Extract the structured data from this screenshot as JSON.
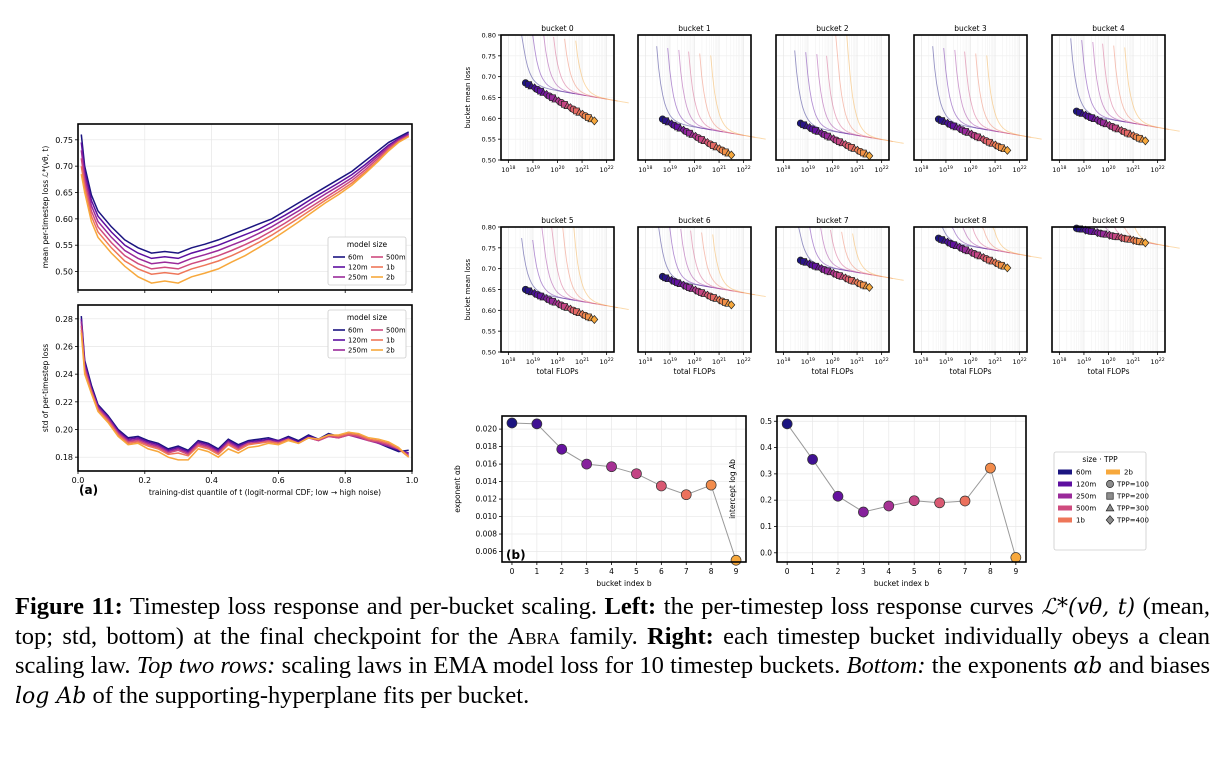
{
  "caption": {
    "label": "Figure 11:",
    "title": "Timestep loss response and per-bucket scaling.",
    "left_label": "Left:",
    "left_text_1": "the per-timestep loss response curves",
    "left_math": "ℒ*(vθ, t)",
    "left_text_2": "(mean, top; std, bottom) at the final checkpoint for the",
    "family": "Abra",
    "left_text_3": "family.",
    "right_label": "Right:",
    "right_text": "each timestep bucket individually obeys a clean scaling law.",
    "rows_label": "Top two rows:",
    "rows_text": "scaling laws in EMA model loss for 10 timestep buckets.",
    "bottom_label": "Bottom:",
    "bottom_text_1": "the exponents",
    "bottom_math_1": "αb",
    "bottom_text_2": "and biases",
    "bottom_math_2": "log Ab",
    "bottom_text_3": "of the supporting-hyperplane fits per bucket."
  },
  "palette": {
    "60m": "#1b1480",
    "120m": "#5e0fa0",
    "250m": "#9a2a9a",
    "500m": "#cf4b7e",
    "1b": "#ee7659",
    "2b": "#f7a83c"
  },
  "chart_data": [
    {
      "id": "left-top",
      "type": "line",
      "ylabel": "mean per-timestep loss  ℒ*(vθ, t)",
      "xlim": [
        0,
        1
      ],
      "ylim": [
        0.465,
        0.78
      ],
      "yticks": [
        0.5,
        0.55,
        0.6,
        0.65,
        0.7,
        0.75
      ],
      "xticks": [
        0.0,
        0.2,
        0.4,
        0.6,
        0.8,
        1.0
      ],
      "grid": true,
      "legend": {
        "title": "model size",
        "placement": "lower-right"
      },
      "x": [
        0.01,
        0.02,
        0.04,
        0.06,
        0.1,
        0.14,
        0.18,
        0.22,
        0.26,
        0.3,
        0.34,
        0.38,
        0.42,
        0.46,
        0.5,
        0.54,
        0.58,
        0.62,
        0.66,
        0.7,
        0.74,
        0.78,
        0.82,
        0.86,
        0.9,
        0.93,
        0.96,
        0.99
      ],
      "series": [
        {
          "name": "60m",
          "values": [
            0.76,
            0.7,
            0.645,
            0.615,
            0.585,
            0.56,
            0.545,
            0.535,
            0.538,
            0.535,
            0.545,
            0.552,
            0.56,
            0.57,
            0.58,
            0.59,
            0.6,
            0.615,
            0.63,
            0.645,
            0.66,
            0.675,
            0.69,
            0.71,
            0.73,
            0.745,
            0.755,
            0.765
          ]
        },
        {
          "name": "120m",
          "values": [
            0.745,
            0.69,
            0.635,
            0.605,
            0.575,
            0.55,
            0.535,
            0.525,
            0.528,
            0.525,
            0.535,
            0.542,
            0.55,
            0.56,
            0.57,
            0.58,
            0.593,
            0.607,
            0.622,
            0.638,
            0.653,
            0.668,
            0.684,
            0.703,
            0.724,
            0.74,
            0.752,
            0.762
          ]
        },
        {
          "name": "250m",
          "values": [
            0.73,
            0.68,
            0.625,
            0.595,
            0.565,
            0.54,
            0.525,
            0.515,
            0.518,
            0.515,
            0.525,
            0.532,
            0.54,
            0.55,
            0.56,
            0.572,
            0.585,
            0.6,
            0.615,
            0.631,
            0.647,
            0.662,
            0.678,
            0.698,
            0.72,
            0.737,
            0.75,
            0.76
          ]
        },
        {
          "name": "500m",
          "values": [
            0.715,
            0.67,
            0.615,
            0.585,
            0.555,
            0.53,
            0.515,
            0.505,
            0.508,
            0.505,
            0.515,
            0.522,
            0.53,
            0.54,
            0.551,
            0.563,
            0.577,
            0.592,
            0.608,
            0.624,
            0.64,
            0.656,
            0.673,
            0.693,
            0.716,
            0.734,
            0.748,
            0.758
          ]
        },
        {
          "name": "1b",
          "values": [
            0.7,
            0.66,
            0.605,
            0.575,
            0.545,
            0.52,
            0.505,
            0.495,
            0.498,
            0.495,
            0.505,
            0.512,
            0.52,
            0.53,
            0.542,
            0.555,
            0.569,
            0.585,
            0.601,
            0.618,
            0.635,
            0.651,
            0.668,
            0.689,
            0.712,
            0.731,
            0.746,
            0.757
          ]
        },
        {
          "name": "2b",
          "values": [
            0.685,
            0.65,
            0.595,
            0.565,
            0.535,
            0.51,
            0.49,
            0.478,
            0.482,
            0.478,
            0.49,
            0.497,
            0.505,
            0.518,
            0.53,
            0.545,
            0.56,
            0.577,
            0.594,
            0.612,
            0.63,
            0.646,
            0.664,
            0.686,
            0.71,
            0.729,
            0.745,
            0.756
          ]
        }
      ]
    },
    {
      "id": "left-bottom",
      "type": "line",
      "ylabel": "std of per-timestep loss",
      "xlabel": "training-dist quantile of t  (logit-normal CDF; low → high noise)",
      "panel_label": "(a)",
      "xlim": [
        0,
        1
      ],
      "ylim": [
        0.17,
        0.29
      ],
      "yticks": [
        0.18,
        0.2,
        0.22,
        0.24,
        0.26,
        0.28
      ],
      "xticks": [
        0.0,
        0.2,
        0.4,
        0.6,
        0.8,
        1.0
      ],
      "xticklabels": [
        "0.0",
        "0.2",
        "0.4",
        "0.6",
        "0.8",
        "1.0"
      ],
      "grid": true,
      "legend": {
        "title": "model size",
        "placement": "top-right"
      },
      "x": [
        0.01,
        0.02,
        0.04,
        0.06,
        0.09,
        0.12,
        0.15,
        0.18,
        0.21,
        0.24,
        0.27,
        0.3,
        0.33,
        0.36,
        0.39,
        0.42,
        0.45,
        0.48,
        0.51,
        0.54,
        0.57,
        0.6,
        0.63,
        0.66,
        0.69,
        0.72,
        0.75,
        0.78,
        0.81,
        0.84,
        0.87,
        0.9,
        0.93,
        0.96,
        0.99
      ],
      "series": [
        {
          "name": "60m",
          "values": [
            0.282,
            0.25,
            0.232,
            0.218,
            0.21,
            0.2,
            0.194,
            0.195,
            0.192,
            0.19,
            0.186,
            0.188,
            0.185,
            0.192,
            0.19,
            0.186,
            0.193,
            0.189,
            0.192,
            0.193,
            0.194,
            0.192,
            0.195,
            0.192,
            0.196,
            0.193,
            0.197,
            0.195,
            0.198,
            0.196,
            0.193,
            0.19,
            0.187,
            0.184,
            0.185
          ]
        },
        {
          "name": "120m",
          "values": [
            0.28,
            0.248,
            0.23,
            0.217,
            0.209,
            0.199,
            0.193,
            0.194,
            0.191,
            0.189,
            0.185,
            0.187,
            0.184,
            0.191,
            0.189,
            0.185,
            0.192,
            0.188,
            0.191,
            0.192,
            0.193,
            0.192,
            0.194,
            0.191,
            0.195,
            0.193,
            0.196,
            0.195,
            0.197,
            0.195,
            0.193,
            0.19,
            0.188,
            0.185,
            0.183
          ]
        },
        {
          "name": "250m",
          "values": [
            0.278,
            0.246,
            0.229,
            0.216,
            0.208,
            0.198,
            0.192,
            0.193,
            0.19,
            0.188,
            0.184,
            0.186,
            0.183,
            0.19,
            0.188,
            0.184,
            0.191,
            0.187,
            0.19,
            0.191,
            0.192,
            0.191,
            0.193,
            0.19,
            0.194,
            0.192,
            0.195,
            0.194,
            0.196,
            0.194,
            0.192,
            0.19,
            0.188,
            0.186,
            0.182
          ]
        },
        {
          "name": "500m",
          "values": [
            0.275,
            0.244,
            0.228,
            0.215,
            0.207,
            0.197,
            0.191,
            0.192,
            0.189,
            0.187,
            0.183,
            0.185,
            0.182,
            0.189,
            0.187,
            0.183,
            0.19,
            0.186,
            0.19,
            0.19,
            0.192,
            0.19,
            0.193,
            0.19,
            0.194,
            0.192,
            0.195,
            0.194,
            0.196,
            0.195,
            0.192,
            0.191,
            0.189,
            0.186,
            0.181
          ]
        },
        {
          "name": "1b",
          "values": [
            0.272,
            0.242,
            0.227,
            0.214,
            0.206,
            0.196,
            0.19,
            0.191,
            0.188,
            0.186,
            0.182,
            0.183,
            0.181,
            0.188,
            0.186,
            0.182,
            0.189,
            0.185,
            0.189,
            0.19,
            0.191,
            0.19,
            0.193,
            0.19,
            0.194,
            0.193,
            0.196,
            0.195,
            0.197,
            0.196,
            0.193,
            0.192,
            0.19,
            0.186,
            0.18
          ]
        },
        {
          "name": "2b",
          "values": [
            0.27,
            0.24,
            0.226,
            0.213,
            0.205,
            0.195,
            0.189,
            0.19,
            0.186,
            0.184,
            0.18,
            0.178,
            0.178,
            0.186,
            0.184,
            0.18,
            0.186,
            0.183,
            0.187,
            0.188,
            0.19,
            0.189,
            0.192,
            0.19,
            0.194,
            0.193,
            0.196,
            0.196,
            0.198,
            0.197,
            0.194,
            0.193,
            0.191,
            0.187,
            0.18
          ]
        }
      ]
    },
    {
      "id": "buckets",
      "type": "scatter",
      "ylabel": "bucket mean loss",
      "xlabel": "total FLOPs",
      "ylim": [
        0.5,
        0.8
      ],
      "yticks": [
        0.5,
        0.55,
        0.6,
        0.65,
        0.7,
        0.75,
        0.8
      ],
      "xscale": "log",
      "xlim_exp": [
        18,
        22
      ],
      "xtick_exps": [
        18,
        19,
        20,
        21,
        22
      ],
      "grid": true,
      "marker_order": [
        "circle",
        "square",
        "triangle",
        "diamond"
      ],
      "sizes": [
        "60m",
        "120m",
        "250m",
        "500m",
        "1b",
        "2b"
      ],
      "buckets": [
        {
          "title": "bucket 0",
          "start": 0.685,
          "end": 0.594
        },
        {
          "title": "bucket 1",
          "start": 0.598,
          "end": 0.512
        },
        {
          "title": "bucket 2",
          "start": 0.588,
          "end": 0.51
        },
        {
          "title": "bucket 3",
          "start": 0.598,
          "end": 0.523
        },
        {
          "title": "bucket 4",
          "start": 0.617,
          "end": 0.546
        },
        {
          "title": "bucket 5",
          "start": 0.65,
          "end": 0.578
        },
        {
          "title": "bucket 6",
          "start": 0.681,
          "end": 0.613
        },
        {
          "title": "bucket 7",
          "start": 0.72,
          "end": 0.655
        },
        {
          "title": "bucket 8",
          "start": 0.773,
          "end": 0.702
        },
        {
          "title": "bucket 9",
          "start": 0.797,
          "end": 0.762
        }
      ]
    },
    {
      "id": "exponent",
      "type": "line",
      "ylabel": "exponent  αb",
      "xlabel": "bucket index  b",
      "panel_label": "(b)",
      "x": [
        0,
        1,
        2,
        3,
        4,
        5,
        6,
        7,
        8,
        9
      ],
      "values": [
        0.0207,
        0.0206,
        0.0177,
        0.016,
        0.0157,
        0.0149,
        0.0135,
        0.0125,
        0.0136,
        0.005
      ],
      "ylim": [
        0.0048,
        0.0215
      ],
      "yticks": [
        0.006,
        0.008,
        0.01,
        0.012,
        0.014,
        0.016,
        0.018,
        0.02
      ],
      "xlim": [
        -0.4,
        9.4
      ],
      "grid": true
    },
    {
      "id": "intercept",
      "type": "line",
      "ylabel": "intercept  log Ab",
      "xlabel": "bucket index  b",
      "x": [
        0,
        1,
        2,
        3,
        4,
        5,
        6,
        7,
        8,
        9
      ],
      "values": [
        0.49,
        0.355,
        0.215,
        0.155,
        0.178,
        0.198,
        0.19,
        0.197,
        0.322,
        -0.018
      ],
      "ylim": [
        -0.035,
        0.52
      ],
      "yticks": [
        0.0,
        0.1,
        0.2,
        0.3,
        0.4,
        0.5
      ],
      "xlim": [
        -0.4,
        9.4
      ],
      "grid": true,
      "legend": {
        "title": "size · TPP",
        "placement": "outside-right",
        "sizes": [
          "60m",
          "120m",
          "250m",
          "500m",
          "1b",
          "2b"
        ],
        "tpp": [
          "TPP=100",
          "TPP=200",
          "TPP=300",
          "TPP=400"
        ]
      }
    }
  ]
}
